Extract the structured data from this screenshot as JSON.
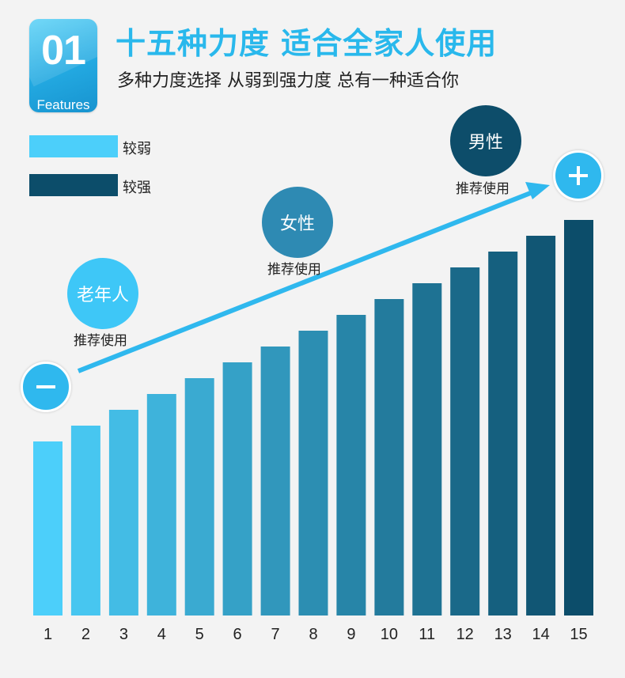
{
  "badge": {
    "number": "01",
    "label": "Features"
  },
  "header": {
    "title": "十五种力度 适合全家人使用",
    "subtitle": "多种力度选择 从弱到强力度 总有一种适合你"
  },
  "legend": [
    {
      "label": "较弱",
      "color": "#4ccffa"
    },
    {
      "label": "较强",
      "color": "#0c4d6a"
    }
  ],
  "markers": {
    "elderly": {
      "label": "老年人",
      "caption": "推荐使用",
      "color": "#3ec7f7"
    },
    "female": {
      "label": "女性",
      "caption": "推荐使用",
      "color": "#2e8ab3"
    },
    "male": {
      "label": "男性",
      "caption": "推荐使用",
      "color": "#0d4d6a"
    },
    "minus_symbol": "−",
    "plus_symbol": "+"
  },
  "chart_data": {
    "type": "bar",
    "categories": [
      "1",
      "2",
      "3",
      "4",
      "5",
      "6",
      "7",
      "8",
      "9",
      "10",
      "11",
      "12",
      "13",
      "14",
      "15"
    ],
    "values": [
      1,
      2,
      3,
      4,
      5,
      6,
      7,
      8,
      9,
      10,
      11,
      12,
      13,
      14,
      15
    ],
    "color_start": "#4ccffa",
    "color_end": "#0c4d6a",
    "xlabel": "",
    "ylabel": "",
    "grid": false,
    "legend_position": "top-left",
    "trend_arrow": true,
    "arrow_color": "#2fb8ee"
  }
}
